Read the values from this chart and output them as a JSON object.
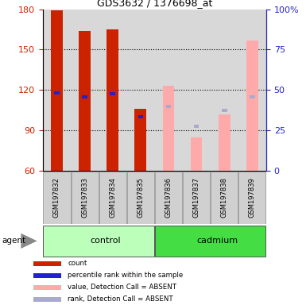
{
  "title": "GDS3632 / 1376698_at",
  "samples": [
    "GSM197832",
    "GSM197833",
    "GSM197834",
    "GSM197835",
    "GSM197836",
    "GSM197837",
    "GSM197838",
    "GSM197839"
  ],
  "is_present": [
    true,
    true,
    true,
    true,
    false,
    false,
    false,
    false
  ],
  "count_values": [
    179,
    164,
    165,
    106,
    123,
    85,
    102,
    157
  ],
  "percentile_rank": [
    118,
    115,
    117,
    100,
    108,
    93,
    105,
    115
  ],
  "ylim_left": [
    60,
    180
  ],
  "ylim_right": [
    0,
    100
  ],
  "yticks_left": [
    60,
    90,
    120,
    150,
    180
  ],
  "yticks_right": [
    0,
    25,
    50,
    75,
    100
  ],
  "bar_color_present": "#cc2200",
  "bar_color_rank_present": "#2222cc",
  "bar_color_absent_value": "#ffaaaa",
  "bar_color_absent_rank": "#aaaacc",
  "agent_label": "agent",
  "group_fill_control": "#bbffbb",
  "group_fill_cadmium": "#44dd44",
  "tick_color_left": "#cc2200",
  "tick_color_right": "#2222cc",
  "legend_items": [
    [
      "#cc2200",
      "count"
    ],
    [
      "#2222cc",
      "percentile rank within the sample"
    ],
    [
      "#ffaaaa",
      "value, Detection Call = ABSENT"
    ],
    [
      "#aaaacc",
      "rank, Detection Call = ABSENT"
    ]
  ]
}
